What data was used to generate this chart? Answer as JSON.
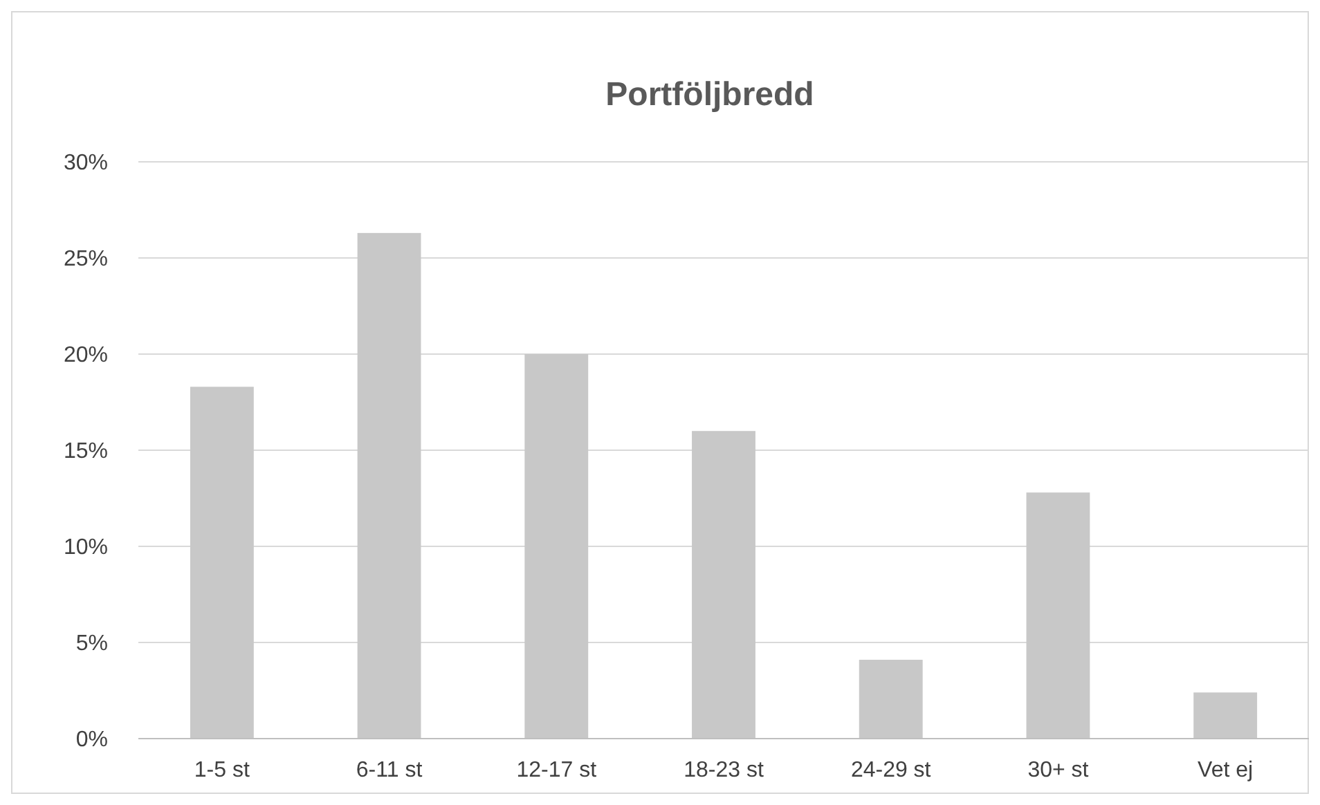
{
  "chart_data": {
    "type": "bar",
    "title": "Portföljbredd",
    "categories": [
      "1-5 st",
      "6-11 st",
      "12-17 st",
      "18-23 st",
      "24-29 st",
      "30+ st",
      "Vet ej"
    ],
    "values": [
      18.3,
      26.3,
      20.0,
      16.0,
      4.1,
      12.8,
      2.4
    ],
    "color": "#c8c8c8",
    "ylim": [
      0,
      30
    ],
    "yticks": [
      {
        "value": 0,
        "label": "0%"
      },
      {
        "value": 5,
        "label": "5%"
      },
      {
        "value": 10,
        "label": "10%"
      },
      {
        "value": 15,
        "label": "15%"
      },
      {
        "value": 20,
        "label": "20%"
      },
      {
        "value": 25,
        "label": "25%"
      },
      {
        "value": 30,
        "label": "30%"
      }
    ],
    "grid": "y"
  }
}
